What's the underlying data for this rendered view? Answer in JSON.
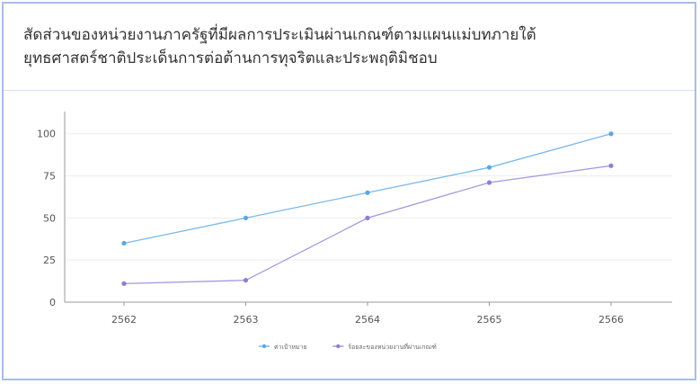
{
  "title": {
    "line1": "สัดส่วนของหน่วยงานภาครัฐที่มีผลการประเมินผ่านเกณฑ์ตามแผนแม่บทภายใต้",
    "line2": "ยุทธศาสตร์ชาติประเด็นการต่อต้านการทุจริตและประพฤติมิชอบ"
  },
  "chart_data": {
    "type": "line",
    "categories": [
      "2562",
      "2563",
      "2564",
      "2565",
      "2566"
    ],
    "series": [
      {
        "name": "ค่าเป้าหมาย",
        "values": [
          35,
          50,
          65,
          80,
          100
        ],
        "color": "#5aa7e6"
      },
      {
        "name": "ร้อยละของหน่วยงานที่ผ่านเกณฑ์",
        "values": [
          11,
          13,
          50,
          71,
          81
        ],
        "color": "#8b7fd6"
      }
    ],
    "yticks": [
      0,
      25,
      50,
      75,
      100
    ],
    "ylim": [
      0,
      110
    ],
    "grid": true,
    "legend_position": "bottom"
  }
}
